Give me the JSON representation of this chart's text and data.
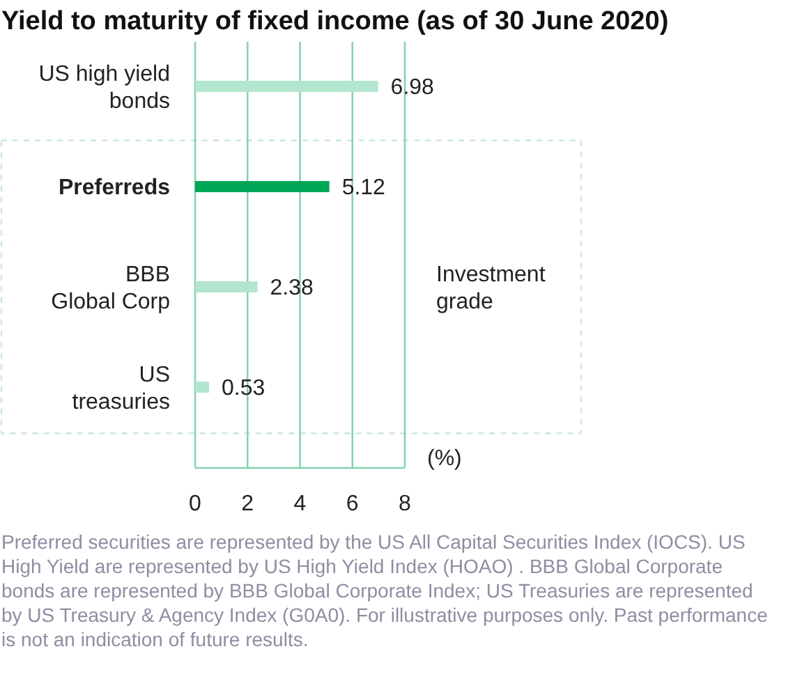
{
  "chart_data": {
    "type": "bar",
    "orientation": "horizontal",
    "title": "Yield to maturity of fixed income (as of 30 June 2020)",
    "xlabel": "(%)",
    "categories": [
      "US high yield\nbonds",
      "Preferreds",
      "BBB\nGlobal Corp",
      "US\ntreasuries"
    ],
    "values": [
      6.98,
      5.12,
      2.38,
      0.53
    ],
    "colors": [
      "#b3e6cf",
      "#00a758",
      "#b3e6cf",
      "#b3e6cf"
    ],
    "xlim": [
      0,
      8
    ],
    "xticks": [
      0,
      2,
      4,
      6,
      8
    ],
    "grid": "x",
    "data_labels": true,
    "annotations": [
      "Investment grade",
      "Preferred securities are represented by the US All Capital Securities Index (IOCS). US High Yield are represented by US High Yield Index (HOAO) . BBB Global Corporate bonds are represented by BBB Global Corporate Index; US Treasuries are represented by US Treasury & Agency Index (G0A0). For illustrative purposes only. Past performance is not an indication of future results."
    ]
  }
}
